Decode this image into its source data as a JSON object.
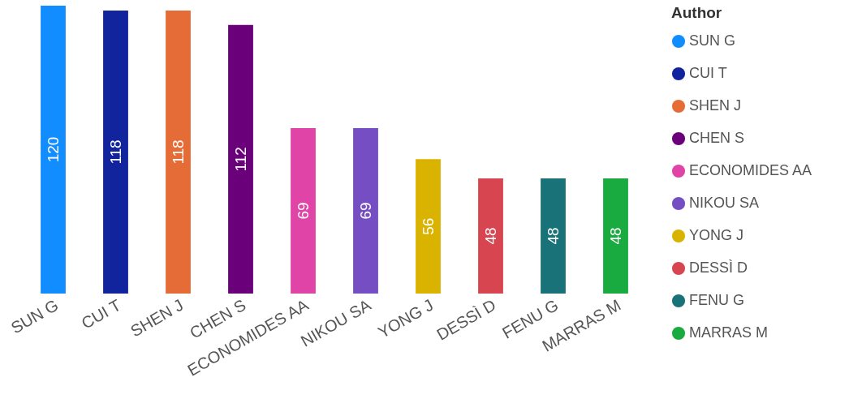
{
  "chart_data": {
    "type": "bar",
    "legend_title": "Author",
    "categories": [
      "SUN G",
      "CUI T",
      "SHEN J",
      "CHEN S",
      "ECONOMIDES AA",
      "NIKOU SA",
      "YONG J",
      "DESSÌ D",
      "FENU G",
      "MARRAS M"
    ],
    "series": [
      {
        "name": "SUN G",
        "color": "#118dff",
        "values": [
          120,
          null,
          null,
          null,
          null,
          null,
          null,
          null,
          null,
          null
        ]
      },
      {
        "name": "CUI T",
        "color": "#12239e",
        "values": [
          null,
          118,
          null,
          null,
          null,
          null,
          null,
          null,
          null,
          null
        ]
      },
      {
        "name": "SHEN J",
        "color": "#e66c37",
        "values": [
          null,
          null,
          118,
          null,
          null,
          null,
          null,
          null,
          null,
          null
        ]
      },
      {
        "name": "CHEN S",
        "color": "#6b007b",
        "values": [
          null,
          null,
          null,
          112,
          null,
          null,
          null,
          null,
          null,
          null
        ]
      },
      {
        "name": "ECONOMIDES AA",
        "color": "#e044a7",
        "values": [
          null,
          null,
          null,
          null,
          69,
          null,
          null,
          null,
          null,
          null
        ]
      },
      {
        "name": "NIKOU SA",
        "color": "#744ec2",
        "values": [
          null,
          null,
          null,
          null,
          null,
          69,
          null,
          null,
          null,
          null
        ]
      },
      {
        "name": "YONG J",
        "color": "#d9b300",
        "values": [
          null,
          null,
          null,
          null,
          null,
          null,
          56,
          null,
          null,
          null
        ]
      },
      {
        "name": "DESSÌ D",
        "color": "#d64550",
        "values": [
          null,
          null,
          null,
          null,
          null,
          null,
          null,
          48,
          null,
          null
        ]
      },
      {
        "name": "FENU G",
        "color": "#197278",
        "values": [
          null,
          null,
          null,
          null,
          null,
          null,
          null,
          null,
          48,
          null
        ]
      },
      {
        "name": "MARRAS M",
        "color": "#1aab40",
        "values": [
          null,
          null,
          null,
          null,
          null,
          null,
          null,
          null,
          null,
          48
        ]
      }
    ],
    "data_labels": true,
    "legend": "right",
    "grid": false,
    "tick_labels": "x"
  }
}
